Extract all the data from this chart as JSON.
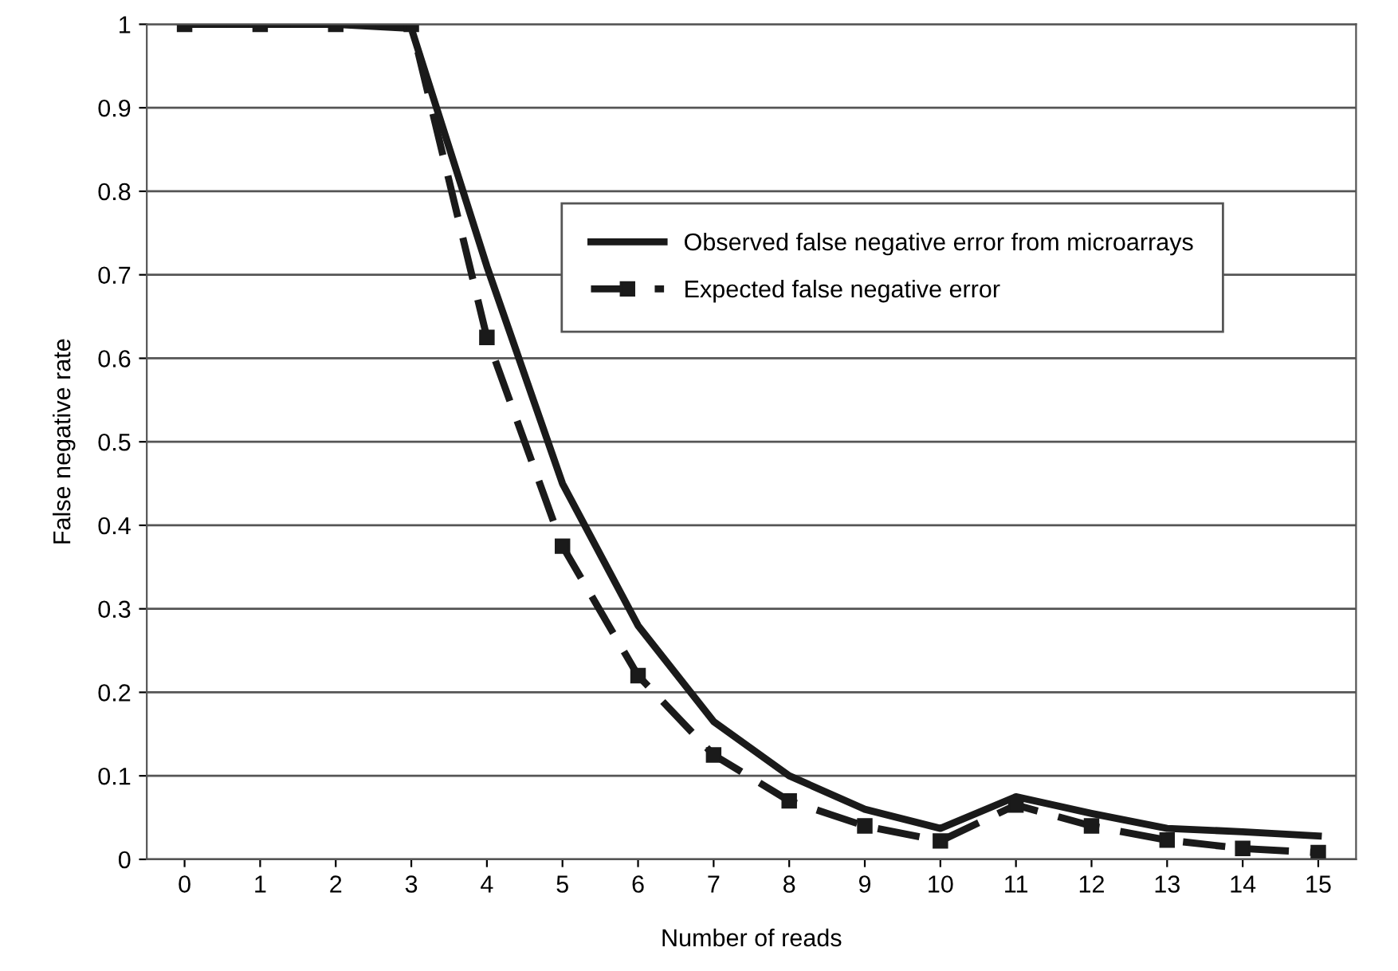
{
  "chart_data": {
    "type": "line",
    "xlabel": "Number of reads",
    "ylabel": "False negative rate",
    "x": [
      0,
      1,
      2,
      3,
      4,
      5,
      6,
      7,
      8,
      9,
      10,
      11,
      12,
      13,
      14,
      15
    ],
    "xlim": [
      -0.5,
      15.5
    ],
    "xticks": [
      0,
      1,
      2,
      3,
      4,
      5,
      6,
      7,
      8,
      9,
      10,
      11,
      12,
      13,
      14,
      15
    ],
    "ylim": [
      0,
      1
    ],
    "yticks": [
      0,
      0.1,
      0.2,
      0.3,
      0.4,
      0.5,
      0.6,
      0.7,
      0.8,
      0.9,
      1
    ],
    "grid": "y",
    "legend": "top right",
    "series": [
      {
        "name": "Observed false negative error from microarrays",
        "color": "#1a1a1a",
        "line_style": "solid",
        "marker": "none",
        "values": [
          1,
          1,
          1,
          0.995,
          0.71,
          0.45,
          0.28,
          0.165,
          0.1,
          0.06,
          0.037,
          0.075,
          0.055,
          0.037,
          0.033,
          0.028
        ]
      },
      {
        "name": "Expected false negative error",
        "color": "#1a1a1a",
        "line_style": "dashed",
        "marker": "square",
        "values": [
          1,
          1,
          1,
          1,
          0.625,
          0.375,
          0.22,
          0.125,
          0.07,
          0.04,
          0.022,
          0.065,
          0.04,
          0.023,
          0.013,
          0.008
        ]
      }
    ]
  }
}
